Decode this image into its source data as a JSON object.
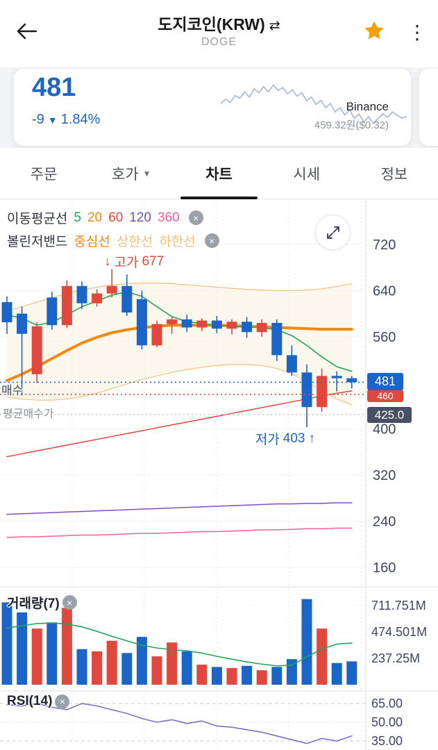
{
  "header": {
    "back_icon": "←",
    "title": "도지코인(KRW)",
    "swap_icon": "⇄",
    "subtitle": "DOGE",
    "menu_icon": "⋮"
  },
  "price_card": {
    "price": "481",
    "change": "-9",
    "down_arrow": "▼",
    "change_pct": "1.84%",
    "exchange": "Binance",
    "converted": "459.32원($0.32)",
    "spark": [
      0.5,
      0.42,
      0.48,
      0.35,
      0.4,
      0.28,
      0.38,
      0.22,
      0.3,
      0.18,
      0.28,
      0.15,
      0.25,
      0.2,
      0.32,
      0.24,
      0.36,
      0.3,
      0.45,
      0.38,
      0.52,
      0.44,
      0.58,
      0.5,
      0.66,
      0.58,
      0.72,
      0.62,
      0.78,
      0.7,
      0.85,
      0.75,
      0.88,
      0.78,
      0.7,
      0.76,
      0.66,
      0.72,
      0.78,
      0.74
    ]
  },
  "tabs": {
    "order": "주문",
    "orderbook": "호가",
    "orderbook_caret": "▼",
    "chart": "차트",
    "market": "시세",
    "info": "정보"
  },
  "legend": {
    "ma": {
      "title": "이동평균선",
      "close": "×",
      "items": [
        {
          "label": "5",
          "color": "#1fa65a"
        },
        {
          "label": "20",
          "color": "#f5870f"
        },
        {
          "label": "60",
          "color": "#e0483e"
        },
        {
          "label": "120",
          "color": "#7c4dc4"
        },
        {
          "label": "360",
          "color": "#f0609a"
        }
      ]
    },
    "bb": {
      "title": "볼린저밴드",
      "close": "×",
      "items": [
        {
          "label": "중심선",
          "color": "#f5870f"
        },
        {
          "label": "상한선",
          "color": "#f3bf76"
        },
        {
          "label": "하한선",
          "color": "#f3bf76"
        }
      ]
    }
  },
  "chart_labels": {
    "buy": "매수",
    "avg_buy": "평균매수가",
    "high_arrow": "↓",
    "high_label": "고가",
    "high_value": "677",
    "low_label": "저가",
    "low_value": "403",
    "low_arrow": "↑",
    "volume_title": "거래량(7)",
    "rsi_title": "RSI(14)",
    "close": "×"
  },
  "badges": {
    "current": "481",
    "order": "460",
    "avg": "425.0"
  },
  "colors": {
    "up": "#e0483e",
    "down": "#1b64c8",
    "ma5": "#1fa65a",
    "ma20": "#f5870f",
    "ma60": "#e0483e",
    "ma120": "#7c4dc4",
    "ma360": "#f0609a",
    "bb_band": "#f3c07a",
    "band_fill": "#f5e9cf",
    "rsi": "#7a6fc8",
    "axis_text": "#3c4660",
    "grid": "#e3e6ea",
    "divider": "#e7e9ec",
    "star": "#f6a000",
    "badge_avg": "#475064"
  },
  "chart_data": [
    {
      "name": "price",
      "type": "candlestick",
      "y_ticks": [
        720,
        640,
        560,
        400,
        320,
        240,
        160
      ],
      "ylim": [
        150,
        740
      ],
      "high_annotation": 677,
      "low_annotation": 403,
      "lines": {
        "current": 481,
        "order": 460,
        "avg": 425.0
      },
      "candles": [
        [
          620,
          630,
          565,
          585
        ],
        [
          600,
          612,
          458,
          565
        ],
        [
          495,
          585,
          480,
          578
        ],
        [
          628,
          638,
          572,
          580
        ],
        [
          580,
          658,
          575,
          648
        ],
        [
          648,
          656,
          608,
          618
        ],
        [
          618,
          642,
          612,
          635
        ],
        [
          635,
          677,
          628,
          648
        ],
        [
          648,
          668,
          596,
          602
        ],
        [
          625,
          640,
          538,
          545
        ],
        [
          545,
          588,
          542,
          582
        ],
        [
          582,
          596,
          565,
          590
        ],
        [
          590,
          598,
          568,
          576
        ],
        [
          576,
          592,
          570,
          588
        ],
        [
          588,
          596,
          566,
          574
        ],
        [
          574,
          590,
          564,
          586
        ],
        [
          586,
          594,
          558,
          568
        ],
        [
          568,
          590,
          560,
          584
        ],
        [
          584,
          590,
          518,
          528
        ],
        [
          528,
          545,
          492,
          498
        ],
        [
          498,
          512,
          403,
          438
        ],
        [
          438,
          505,
          430,
          492
        ],
        [
          492,
          500,
          465,
          488
        ],
        [
          488,
          492,
          470,
          481
        ]
      ],
      "series": {
        "ma5": [
          598,
          592,
          580,
          585,
          598,
          612,
          622,
          632,
          638,
          630,
          612,
          595,
          586,
          583,
          580,
          578,
          577,
          576,
          572,
          562,
          545,
          525,
          508,
          500
        ],
        "bb_center": [
          484,
          495,
          508,
          522,
          536,
          549,
          559,
          567,
          572,
          576,
          578,
          580,
          580,
          580,
          580,
          579,
          578,
          577,
          576,
          575,
          574,
          573,
          573,
          573
        ],
        "bb_upper": [
          605,
          612,
          620,
          628,
          635,
          641,
          646,
          650,
          652,
          653,
          653,
          652,
          650,
          648,
          646,
          644,
          642,
          641,
          640,
          640,
          641,
          643,
          647,
          652
        ],
        "bb_lower": [
          455,
          452,
          450,
          450,
          452,
          456,
          462,
          470,
          478,
          486,
          492,
          498,
          503,
          507,
          510,
          512,
          512,
          510,
          505,
          496,
          482,
          466,
          452,
          442
        ],
        "ma60": [
          352,
          357,
          362,
          367,
          372,
          377,
          382,
          387,
          392,
          397,
          402,
          407,
          412,
          417,
          422,
          427,
          432,
          437,
          442,
          447,
          452,
          457,
          462,
          466
        ],
        "ma120": [
          252,
          253,
          254,
          255,
          256,
          257,
          258,
          259,
          260,
          261,
          262,
          263,
          264,
          265,
          266,
          267,
          268,
          269,
          270,
          270,
          271,
          271,
          272,
          272
        ],
        "ma360": [
          212,
          213,
          213,
          214,
          215,
          216,
          216,
          217,
          218,
          219,
          219,
          220,
          221,
          222,
          222,
          223,
          224,
          225,
          225,
          226,
          227,
          227,
          228,
          228
        ]
      }
    },
    {
      "name": "volume",
      "type": "bar",
      "unit": "M",
      "y_ticks": [
        {
          "label": "711.751M",
          "value": 711.751
        },
        {
          "label": "474.501M",
          "value": 474.501
        },
        {
          "label": "237.25M",
          "value": 237.25
        }
      ],
      "values": [
        740,
        650,
        505,
        560,
        690,
        320,
        300,
        395,
        285,
        430,
        255,
        380,
        300,
        180,
        160,
        150,
        170,
        130,
        160,
        230,
        770,
        505,
        195,
        210
      ],
      "ma7": [
        510,
        530,
        550,
        555,
        545,
        520,
        480,
        435,
        395,
        355,
        330,
        315,
        305,
        285,
        255,
        230,
        205,
        185,
        170,
        175,
        250,
        320,
        365,
        375
      ]
    },
    {
      "name": "rsi",
      "type": "line",
      "y_ticks": [
        {
          "label": "65.00",
          "value": 65
        },
        {
          "label": "50.00",
          "value": 50
        },
        {
          "label": "35.00",
          "value": 35
        }
      ],
      "guides": [
        65,
        35
      ],
      "values": [
        64,
        63,
        65,
        62,
        60,
        65,
        63,
        60,
        57,
        53,
        50,
        52,
        49,
        51,
        47,
        46,
        44,
        42,
        39,
        36,
        33,
        37,
        35,
        39
      ]
    }
  ]
}
